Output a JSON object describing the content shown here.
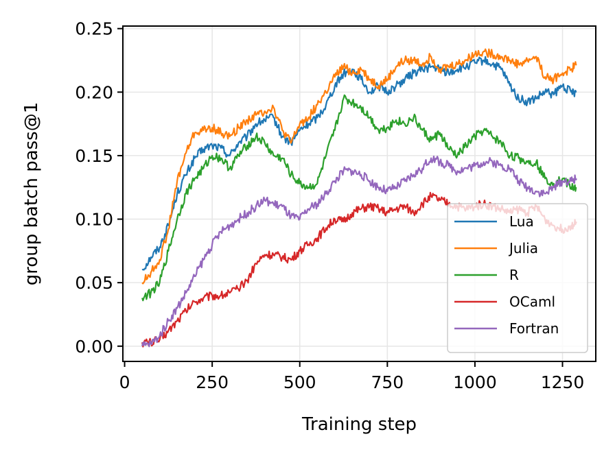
{
  "chart_data": {
    "type": "line",
    "xlabel": "Training step",
    "ylabel": "group batch pass@1",
    "xlim": [
      -5,
      1345
    ],
    "ylim": [
      -0.012,
      0.252
    ],
    "xticks": [
      0,
      250,
      500,
      750,
      1000,
      1250
    ],
    "xtick_labels": [
      "0",
      "250",
      "500",
      "750",
      "1000",
      "1250"
    ],
    "yticks": [
      0.0,
      0.05,
      0.1,
      0.15,
      0.2,
      0.25
    ],
    "ytick_labels": [
      "0.00",
      "0.05",
      "0.10",
      "0.15",
      "0.20",
      "0.25"
    ],
    "grid": true,
    "legend_position": "lower-right",
    "series": [
      {
        "name": "Lua",
        "color": "#1f77b4",
        "points": [
          [
            50,
            0.06
          ],
          [
            75,
            0.07
          ],
          [
            100,
            0.078
          ],
          [
            125,
            0.095
          ],
          [
            150,
            0.12
          ],
          [
            175,
            0.135
          ],
          [
            200,
            0.148
          ],
          [
            225,
            0.155
          ],
          [
            250,
            0.158
          ],
          [
            275,
            0.156
          ],
          [
            300,
            0.15
          ],
          [
            325,
            0.16
          ],
          [
            350,
            0.165
          ],
          [
            375,
            0.175
          ],
          [
            400,
            0.178
          ],
          [
            425,
            0.18
          ],
          [
            450,
            0.165
          ],
          [
            475,
            0.16
          ],
          [
            500,
            0.17
          ],
          [
            525,
            0.175
          ],
          [
            550,
            0.18
          ],
          [
            575,
            0.19
          ],
          [
            600,
            0.205
          ],
          [
            625,
            0.215
          ],
          [
            650,
            0.218
          ],
          [
            675,
            0.21
          ],
          [
            700,
            0.2
          ],
          [
            725,
            0.205
          ],
          [
            750,
            0.2
          ],
          [
            775,
            0.205
          ],
          [
            800,
            0.21
          ],
          [
            825,
            0.215
          ],
          [
            850,
            0.218
          ],
          [
            875,
            0.22
          ],
          [
            900,
            0.218
          ],
          [
            925,
            0.215
          ],
          [
            950,
            0.218
          ],
          [
            975,
            0.22
          ],
          [
            1000,
            0.223
          ],
          [
            1025,
            0.225
          ],
          [
            1050,
            0.222
          ],
          [
            1075,
            0.218
          ],
          [
            1100,
            0.205
          ],
          [
            1125,
            0.195
          ],
          [
            1150,
            0.192
          ],
          [
            1175,
            0.195
          ],
          [
            1200,
            0.2
          ],
          [
            1225,
            0.198
          ],
          [
            1250,
            0.205
          ],
          [
            1275,
            0.2
          ],
          [
            1290,
            0.2
          ]
        ]
      },
      {
        "name": "Julia",
        "color": "#ff7f0e",
        "points": [
          [
            50,
            0.05
          ],
          [
            75,
            0.058
          ],
          [
            100,
            0.068
          ],
          [
            125,
            0.092
          ],
          [
            150,
            0.13
          ],
          [
            175,
            0.152
          ],
          [
            200,
            0.168
          ],
          [
            225,
            0.17
          ],
          [
            250,
            0.172
          ],
          [
            275,
            0.168
          ],
          [
            300,
            0.165
          ],
          [
            325,
            0.172
          ],
          [
            350,
            0.178
          ],
          [
            375,
            0.182
          ],
          [
            400,
            0.185
          ],
          [
            425,
            0.188
          ],
          [
            450,
            0.17
          ],
          [
            475,
            0.16
          ],
          [
            500,
            0.175
          ],
          [
            525,
            0.18
          ],
          [
            550,
            0.19
          ],
          [
            575,
            0.2
          ],
          [
            600,
            0.212
          ],
          [
            625,
            0.22
          ],
          [
            650,
            0.215
          ],
          [
            675,
            0.218
          ],
          [
            700,
            0.21
          ],
          [
            725,
            0.205
          ],
          [
            750,
            0.21
          ],
          [
            775,
            0.22
          ],
          [
            800,
            0.225
          ],
          [
            825,
            0.225
          ],
          [
            850,
            0.222
          ],
          [
            875,
            0.228
          ],
          [
            900,
            0.218
          ],
          [
            925,
            0.22
          ],
          [
            950,
            0.222
          ],
          [
            975,
            0.225
          ],
          [
            1000,
            0.23
          ],
          [
            1025,
            0.232
          ],
          [
            1050,
            0.23
          ],
          [
            1075,
            0.228
          ],
          [
            1100,
            0.225
          ],
          [
            1125,
            0.222
          ],
          [
            1150,
            0.225
          ],
          [
            1175,
            0.228
          ],
          [
            1200,
            0.212
          ],
          [
            1225,
            0.21
          ],
          [
            1250,
            0.215
          ],
          [
            1275,
            0.218
          ],
          [
            1290,
            0.222
          ]
        ]
      },
      {
        "name": "R",
        "color": "#2ca02c",
        "points": [
          [
            50,
            0.038
          ],
          [
            75,
            0.042
          ],
          [
            100,
            0.05
          ],
          [
            125,
            0.075
          ],
          [
            150,
            0.1
          ],
          [
            175,
            0.12
          ],
          [
            200,
            0.132
          ],
          [
            225,
            0.14
          ],
          [
            250,
            0.15
          ],
          [
            275,
            0.148
          ],
          [
            300,
            0.14
          ],
          [
            325,
            0.15
          ],
          [
            350,
            0.158
          ],
          [
            375,
            0.165
          ],
          [
            400,
            0.16
          ],
          [
            425,
            0.15
          ],
          [
            450,
            0.148
          ],
          [
            475,
            0.135
          ],
          [
            500,
            0.128
          ],
          [
            525,
            0.125
          ],
          [
            550,
            0.128
          ],
          [
            575,
            0.15
          ],
          [
            600,
            0.17
          ],
          [
            625,
            0.195
          ],
          [
            650,
            0.192
          ],
          [
            675,
            0.188
          ],
          [
            700,
            0.18
          ],
          [
            725,
            0.17
          ],
          [
            750,
            0.172
          ],
          [
            775,
            0.178
          ],
          [
            800,
            0.175
          ],
          [
            825,
            0.18
          ],
          [
            850,
            0.17
          ],
          [
            875,
            0.162
          ],
          [
            900,
            0.168
          ],
          [
            925,
            0.155
          ],
          [
            950,
            0.15
          ],
          [
            975,
            0.158
          ],
          [
            1000,
            0.165
          ],
          [
            1025,
            0.17
          ],
          [
            1050,
            0.165
          ],
          [
            1075,
            0.16
          ],
          [
            1100,
            0.15
          ],
          [
            1125,
            0.148
          ],
          [
            1150,
            0.145
          ],
          [
            1175,
            0.145
          ],
          [
            1200,
            0.132
          ],
          [
            1225,
            0.128
          ],
          [
            1250,
            0.132
          ],
          [
            1275,
            0.125
          ],
          [
            1290,
            0.125
          ]
        ]
      },
      {
        "name": "OCaml",
        "color": "#d62728",
        "points": [
          [
            50,
            0.003
          ],
          [
            75,
            0.003
          ],
          [
            100,
            0.005
          ],
          [
            125,
            0.012
          ],
          [
            150,
            0.02
          ],
          [
            175,
            0.028
          ],
          [
            200,
            0.035
          ],
          [
            225,
            0.038
          ],
          [
            250,
            0.04
          ],
          [
            275,
            0.04
          ],
          [
            300,
            0.042
          ],
          [
            325,
            0.045
          ],
          [
            350,
            0.052
          ],
          [
            375,
            0.065
          ],
          [
            400,
            0.072
          ],
          [
            425,
            0.072
          ],
          [
            450,
            0.07
          ],
          [
            475,
            0.068
          ],
          [
            500,
            0.075
          ],
          [
            525,
            0.08
          ],
          [
            550,
            0.085
          ],
          [
            575,
            0.093
          ],
          [
            600,
            0.1
          ],
          [
            625,
            0.098
          ],
          [
            650,
            0.105
          ],
          [
            675,
            0.108
          ],
          [
            700,
            0.11
          ],
          [
            725,
            0.108
          ],
          [
            750,
            0.105
          ],
          [
            775,
            0.108
          ],
          [
            800,
            0.11
          ],
          [
            825,
            0.105
          ],
          [
            850,
            0.112
          ],
          [
            875,
            0.118
          ],
          [
            900,
            0.115
          ],
          [
            925,
            0.112
          ],
          [
            950,
            0.11
          ],
          [
            975,
            0.108
          ],
          [
            1000,
            0.11
          ],
          [
            1025,
            0.112
          ],
          [
            1050,
            0.11
          ],
          [
            1075,
            0.108
          ],
          [
            1100,
            0.105
          ],
          [
            1125,
            0.108
          ],
          [
            1150,
            0.105
          ],
          [
            1175,
            0.11
          ],
          [
            1200,
            0.1
          ],
          [
            1225,
            0.095
          ],
          [
            1250,
            0.092
          ],
          [
            1275,
            0.095
          ],
          [
            1290,
            0.098
          ]
        ]
      },
      {
        "name": "Fortran",
        "color": "#9467bd",
        "points": [
          [
            50,
            0.0
          ],
          [
            75,
            0.002
          ],
          [
            100,
            0.008
          ],
          [
            125,
            0.02
          ],
          [
            150,
            0.03
          ],
          [
            175,
            0.042
          ],
          [
            200,
            0.055
          ],
          [
            225,
            0.068
          ],
          [
            250,
            0.08
          ],
          [
            275,
            0.09
          ],
          [
            300,
            0.095
          ],
          [
            325,
            0.1
          ],
          [
            350,
            0.105
          ],
          [
            375,
            0.11
          ],
          [
            400,
            0.115
          ],
          [
            425,
            0.112
          ],
          [
            450,
            0.11
          ],
          [
            475,
            0.102
          ],
          [
            500,
            0.1
          ],
          [
            525,
            0.108
          ],
          [
            550,
            0.112
          ],
          [
            575,
            0.12
          ],
          [
            600,
            0.13
          ],
          [
            625,
            0.138
          ],
          [
            650,
            0.138
          ],
          [
            675,
            0.135
          ],
          [
            700,
            0.13
          ],
          [
            725,
            0.125
          ],
          [
            750,
            0.122
          ],
          [
            775,
            0.125
          ],
          [
            800,
            0.13
          ],
          [
            825,
            0.135
          ],
          [
            850,
            0.14
          ],
          [
            875,
            0.148
          ],
          [
            900,
            0.145
          ],
          [
            925,
            0.142
          ],
          [
            950,
            0.138
          ],
          [
            975,
            0.14
          ],
          [
            1000,
            0.142
          ],
          [
            1025,
            0.145
          ],
          [
            1050,
            0.145
          ],
          [
            1075,
            0.142
          ],
          [
            1100,
            0.14
          ],
          [
            1125,
            0.13
          ],
          [
            1150,
            0.125
          ],
          [
            1175,
            0.122
          ],
          [
            1200,
            0.12
          ],
          [
            1225,
            0.125
          ],
          [
            1250,
            0.13
          ],
          [
            1275,
            0.13
          ],
          [
            1290,
            0.132
          ]
        ]
      }
    ]
  }
}
